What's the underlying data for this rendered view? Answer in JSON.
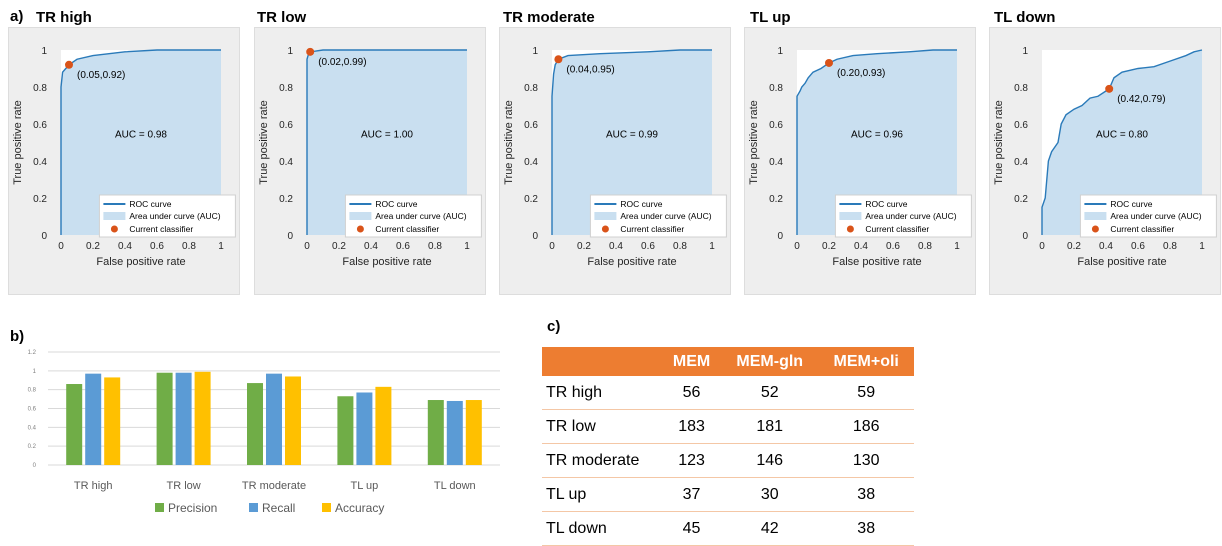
{
  "panels": {
    "a": "a)",
    "b": "b)",
    "c": "c)"
  },
  "chart_data": [
    {
      "type": "line",
      "title": "TR high",
      "xlabel": "False positive rate",
      "ylabel": "True positive rate",
      "xlim": [
        0,
        1
      ],
      "ylim": [
        0,
        1
      ],
      "xticks": [
        "0",
        "0.2",
        "0.4",
        "0.6",
        "0.8",
        "1"
      ],
      "yticks": [
        "0",
        "0.2",
        "0.4",
        "0.6",
        "0.8",
        "1"
      ],
      "curve": [
        [
          0,
          0
        ],
        [
          0,
          0.8
        ],
        [
          0.01,
          0.88
        ],
        [
          0.03,
          0.9
        ],
        [
          0.05,
          0.92
        ],
        [
          0.1,
          0.95
        ],
        [
          0.2,
          0.97
        ],
        [
          0.4,
          0.99
        ],
        [
          0.6,
          1
        ],
        [
          1,
          1
        ]
      ],
      "point": [
        0.05,
        0.92
      ],
      "point_label": "(0.05,0.92)",
      "auc_label": "AUC = 0.98",
      "legend": [
        "ROC curve",
        "Area under curve (AUC)",
        "Current classifier"
      ]
    },
    {
      "type": "line",
      "title": "TR low",
      "xlabel": "False positive rate",
      "ylabel": "True positive rate",
      "xlim": [
        0,
        1
      ],
      "ylim": [
        0,
        1
      ],
      "xticks": [
        "0",
        "0.2",
        "0.4",
        "0.6",
        "0.8",
        "1"
      ],
      "yticks": [
        "0",
        "0.2",
        "0.4",
        "0.6",
        "0.8",
        "1"
      ],
      "curve": [
        [
          0,
          0
        ],
        [
          0,
          0.95
        ],
        [
          0.01,
          0.98
        ],
        [
          0.02,
          0.99
        ],
        [
          0.1,
          1
        ],
        [
          1,
          1
        ]
      ],
      "point": [
        0.02,
        0.99
      ],
      "point_label": "(0.02,0.99)",
      "auc_label": "AUC = 1.00",
      "legend": [
        "ROC curve",
        "Area under curve (AUC)",
        "Current classifier"
      ]
    },
    {
      "type": "line",
      "title": "TR moderate",
      "xlabel": "False positive rate",
      "ylabel": "True positive rate",
      "xlim": [
        0,
        1
      ],
      "ylim": [
        0,
        1
      ],
      "xticks": [
        "0",
        "0.2",
        "0.4",
        "0.6",
        "0.8",
        "1"
      ],
      "yticks": [
        "0",
        "0.2",
        "0.4",
        "0.6",
        "0.8",
        "1"
      ],
      "curve": [
        [
          0,
          0
        ],
        [
          0,
          0.75
        ],
        [
          0.01,
          0.87
        ],
        [
          0.02,
          0.92
        ],
        [
          0.04,
          0.95
        ],
        [
          0.1,
          0.97
        ],
        [
          0.3,
          0.98
        ],
        [
          0.6,
          0.99
        ],
        [
          0.8,
          1
        ],
        [
          1,
          1
        ]
      ],
      "point": [
        0.04,
        0.95
      ],
      "point_label": "(0.04,0.95)",
      "auc_label": "AUC = 0.99",
      "legend": [
        "ROC curve",
        "Area under curve (AUC)",
        "Current classifier"
      ]
    },
    {
      "type": "line",
      "title": "TL up",
      "xlabel": "False positive rate",
      "ylabel": "True positive rate",
      "xlim": [
        0,
        1
      ],
      "ylim": [
        0,
        1
      ],
      "xticks": [
        "0",
        "0.2",
        "0.4",
        "0.6",
        "0.8",
        "1"
      ],
      "yticks": [
        "0",
        "0.2",
        "0.4",
        "0.6",
        "0.8",
        "1"
      ],
      "curve": [
        [
          0,
          0
        ],
        [
          0,
          0.75
        ],
        [
          0.02,
          0.78
        ],
        [
          0.03,
          0.8
        ],
        [
          0.05,
          0.82
        ],
        [
          0.07,
          0.85
        ],
        [
          0.1,
          0.88
        ],
        [
          0.15,
          0.9
        ],
        [
          0.2,
          0.93
        ],
        [
          0.25,
          0.95
        ],
        [
          0.35,
          0.97
        ],
        [
          0.5,
          0.98
        ],
        [
          0.7,
          0.99
        ],
        [
          0.85,
          1
        ],
        [
          1,
          1
        ]
      ],
      "point": [
        0.2,
        0.93
      ],
      "point_label": "(0.20,0.93)",
      "auc_label": "AUC = 0.96",
      "legend": [
        "ROC curve",
        "Area under curve (AUC)",
        "Current classifier"
      ]
    },
    {
      "type": "line",
      "title": "TL down",
      "xlabel": "False positive rate",
      "ylabel": "True positive rate",
      "xlim": [
        0,
        1
      ],
      "ylim": [
        0,
        1
      ],
      "xticks": [
        "0",
        "0.2",
        "0.4",
        "0.6",
        "0.8",
        "1"
      ],
      "yticks": [
        "0",
        "0.2",
        "0.4",
        "0.6",
        "0.8",
        "1"
      ],
      "curve": [
        [
          0,
          0
        ],
        [
          0,
          0.15
        ],
        [
          0.02,
          0.2
        ],
        [
          0.04,
          0.4
        ],
        [
          0.06,
          0.45
        ],
        [
          0.1,
          0.5
        ],
        [
          0.12,
          0.6
        ],
        [
          0.15,
          0.65
        ],
        [
          0.2,
          0.68
        ],
        [
          0.25,
          0.7
        ],
        [
          0.3,
          0.74
        ],
        [
          0.35,
          0.75
        ],
        [
          0.42,
          0.79
        ],
        [
          0.45,
          0.85
        ],
        [
          0.5,
          0.88
        ],
        [
          0.6,
          0.9
        ],
        [
          0.7,
          0.91
        ],
        [
          0.8,
          0.94
        ],
        [
          0.9,
          0.97
        ],
        [
          0.95,
          0.99
        ],
        [
          1,
          1
        ]
      ],
      "point": [
        0.42,
        0.79
      ],
      "point_label": "(0.42,0.79)",
      "auc_label": "AUC = 0.80",
      "legend": [
        "ROC curve",
        "Area under curve (AUC)",
        "Current classifier"
      ]
    },
    {
      "type": "bar",
      "categories": [
        "TR high",
        "TR low",
        "TR moderate",
        "TL up",
        "TL down"
      ],
      "series": [
        {
          "name": "Precision",
          "values": [
            0.86,
            0.98,
            0.87,
            0.73,
            0.69
          ],
          "color": "#70ad47"
        },
        {
          "name": "Recall",
          "values": [
            0.97,
            0.98,
            0.97,
            0.77,
            0.68
          ],
          "color": "#5b9bd5"
        },
        {
          "name": "Accuracy",
          "values": [
            0.93,
            0.99,
            0.94,
            0.83,
            0.69
          ],
          "color": "#ffc000"
        }
      ],
      "ylim": [
        0,
        1.2
      ],
      "yticks": [
        "0",
        "0.2",
        "0.4",
        "0.6",
        "0.8",
        "1",
        "1.2"
      ],
      "grid": true,
      "legend_position": "bottom"
    },
    {
      "type": "table",
      "columns": [
        "",
        "MEM",
        "MEM-gln",
        "MEM+oli"
      ],
      "rows": [
        [
          "TR high",
          "56",
          "52",
          "59"
        ],
        [
          "TR low",
          "183",
          "181",
          "186"
        ],
        [
          "TR moderate",
          "123",
          "146",
          "130"
        ],
        [
          "TL up",
          "37",
          "30",
          "38"
        ],
        [
          "TL down",
          "45",
          "42",
          "38"
        ]
      ]
    }
  ],
  "colors": {
    "roc_line": "#2a7ab9",
    "auc_fill": "#c9dff0",
    "classifier_point": "#d95319",
    "table_header": "#ed7d31"
  }
}
